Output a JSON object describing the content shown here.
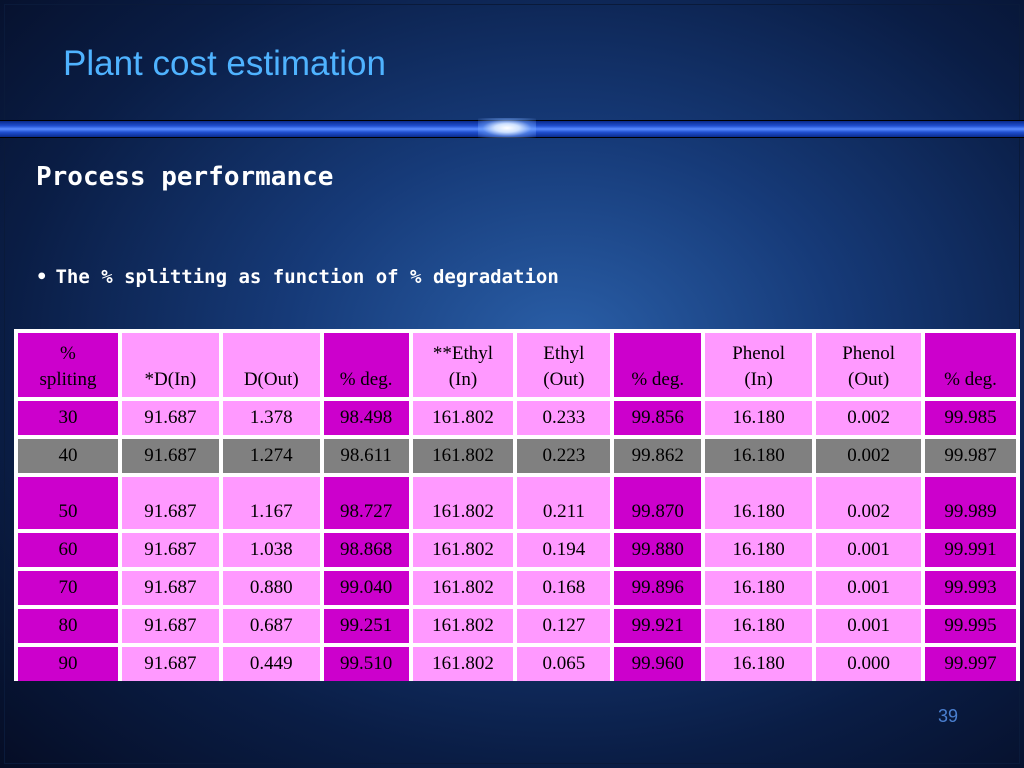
{
  "slide": {
    "title": "Plant cost estimation",
    "subtitle": "Process performance",
    "bullet_marker": "•",
    "bullet_text": "The % splitting as function of % degradation",
    "page_number": "39"
  },
  "table": {
    "headers": [
      [
        "%",
        "spliting"
      ],
      [
        "",
        "*D(In)"
      ],
      [
        "",
        "D(Out)"
      ],
      [
        "",
        "% deg."
      ],
      [
        "**Ethyl",
        "(In)"
      ],
      [
        "Ethyl",
        "(Out)"
      ],
      [
        "",
        "% deg."
      ],
      [
        "Phenol",
        "(In)"
      ],
      [
        "Phenol",
        "(Out)"
      ],
      [
        "",
        "% deg."
      ]
    ],
    "rows": [
      [
        "30",
        "91.687",
        "1.378",
        "98.498",
        "161.802",
        "0.233",
        "99.856",
        "16.180",
        "0.002",
        "99.985"
      ],
      [
        "40",
        "91.687",
        "1.274",
        "98.611",
        "161.802",
        "0.223",
        "99.862",
        "16.180",
        "0.002",
        "99.987"
      ],
      [
        "50",
        "91.687",
        "1.167",
        "98.727",
        "161.802",
        "0.211",
        "99.870",
        "16.180",
        "0.002",
        "99.989"
      ],
      [
        "60",
        "91.687",
        "1.038",
        "98.868",
        "161.802",
        "0.194",
        "99.880",
        "16.180",
        "0.001",
        "99.991"
      ],
      [
        "70",
        "91.687",
        "0.880",
        "99.040",
        "161.802",
        "0.168",
        "99.896",
        "16.180",
        "0.001",
        "99.993"
      ],
      [
        "80",
        "91.687",
        "0.687",
        "99.251",
        "161.802",
        "0.127",
        "99.921",
        "16.180",
        "0.001",
        "99.995"
      ],
      [
        "90",
        "91.687",
        "0.449",
        "99.510",
        "161.802",
        "0.065",
        "99.960",
        "16.180",
        "0.000",
        "99.997"
      ]
    ],
    "colors": {
      "light_cell": "#ff99ff",
      "dark_cell": "#cc00cc",
      "highlight_row": "#808080"
    }
  }
}
